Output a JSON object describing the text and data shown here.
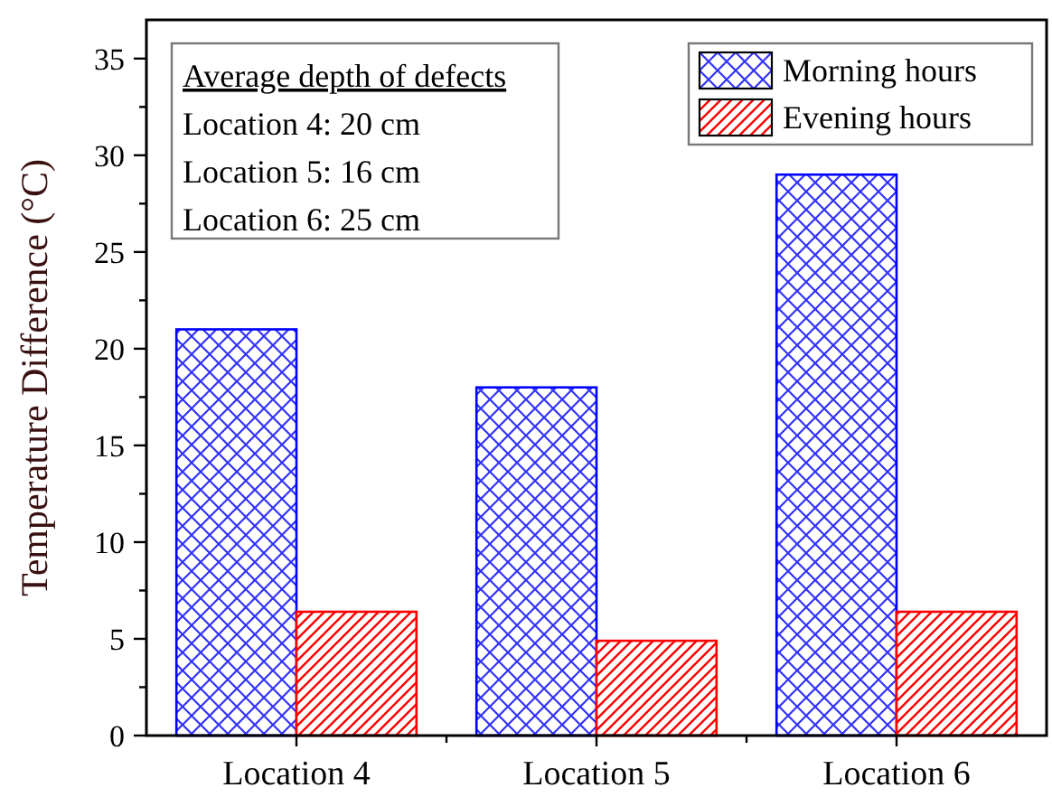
{
  "chart_data": {
    "type": "bar",
    "ylabel": "Temperature Difference (°C)",
    "categories": [
      "Location 4",
      "Location 5",
      "Location 6"
    ],
    "series": [
      {
        "name": "Morning hours",
        "color": "#0000ff",
        "values": [
          21,
          18,
          29
        ]
      },
      {
        "name": "Evening hours",
        "color": "#ff0000",
        "values": [
          6.4,
          4.9,
          6.4
        ]
      }
    ],
    "ylim": [
      0,
      37
    ],
    "yticks": [
      0,
      {
        "value": 2.5,
        "label": null
      },
      5,
      {
        "value": 7.5,
        "label": null
      },
      10,
      {
        "value": 12.5,
        "label": null
      },
      15,
      {
        "value": 17.5,
        "label": null
      },
      20,
      {
        "value": 22.5,
        "label": null
      },
      25,
      {
        "value": 27.5,
        "label": null
      },
      30,
      {
        "value": 32.5,
        "label": null
      },
      35
    ],
    "annotations": [
      "Average depth of defects",
      "Location 4: 20 cm",
      "Location 5: 16 cm",
      "Location 6: 25 cm"
    ],
    "legend": "top right"
  }
}
